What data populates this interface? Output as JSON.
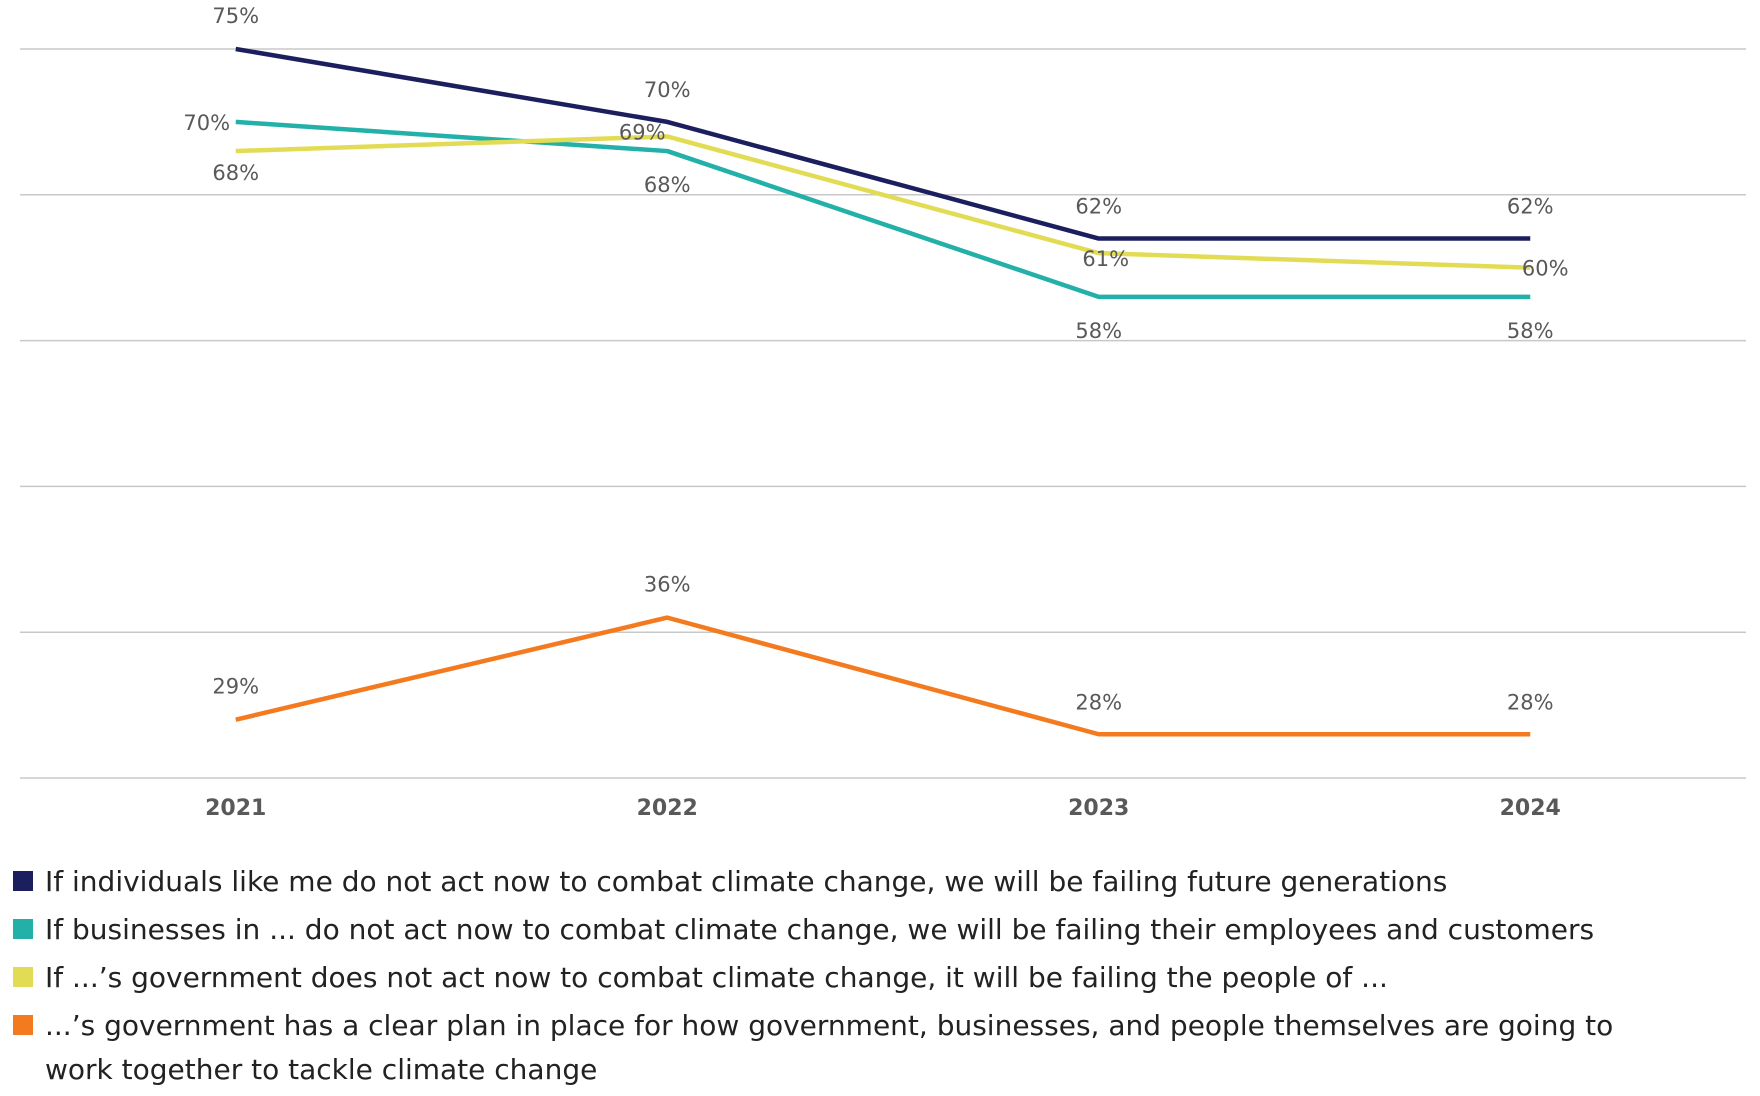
{
  "chart_data": {
    "type": "line",
    "categories": [
      "2021",
      "2022",
      "2023",
      "2024"
    ],
    "ylim": [
      25,
      75
    ],
    "yticks": [
      25,
      35,
      45,
      55,
      65,
      75
    ],
    "grid": true,
    "series": [
      {
        "name": "If individuals like me do not act now to combat climate change, we will be failing future generations",
        "color": "#1b1f5e",
        "values": [
          75,
          70,
          62,
          62
        ],
        "value_labels": [
          "75%",
          "70%",
          "62%",
          "62%"
        ]
      },
      {
        "name": "If businesses in ... do not act now to combat climate change, we will be failing their employees and customers",
        "color": "#22b0a8",
        "values": [
          70,
          68,
          58,
          58
        ],
        "value_labels": [
          "70%",
          "68%",
          "58%",
          "58%"
        ]
      },
      {
        "name": "If ...’s government does not act now to combat climate change, it will be failing the people of ...",
        "color": "#e2dc55",
        "values": [
          68,
          69,
          61,
          60
        ],
        "value_labels": [
          "68%",
          "69%",
          "61%",
          "60%"
        ]
      },
      {
        "name": "...’s government has a clear plan in place for how government, businesses, and people themselves are going to work together to tackle climate change",
        "color": "#f47a1f",
        "values": [
          29,
          36,
          28,
          28
        ],
        "value_labels": [
          "29%",
          "36%",
          "28%",
          "28%"
        ]
      }
    ]
  }
}
